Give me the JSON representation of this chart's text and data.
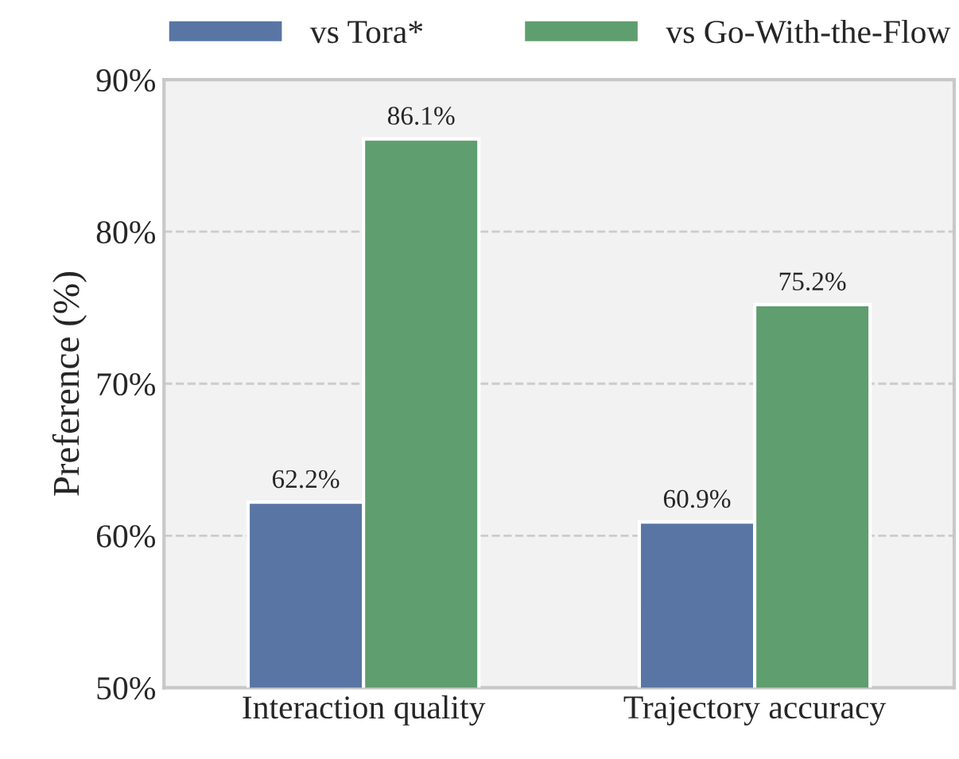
{
  "chart_data": {
    "type": "bar",
    "ylabel": "Preference (%)",
    "categories": [
      "Interaction quality",
      "Trajectory accuracy"
    ],
    "series": [
      {
        "name": "vs Tora*",
        "color": "#5875a4",
        "values": [
          62.2,
          60.9
        ],
        "value_labels": [
          "62.2%",
          "60.9%"
        ]
      },
      {
        "name": "vs Go-With-the-Flow",
        "color": "#5f9e6e",
        "values": [
          86.1,
          75.2
        ],
        "value_labels": [
          "86.1%",
          "75.2%"
        ]
      }
    ],
    "ylim": [
      50,
      90
    ],
    "yticks": [
      {
        "value": 50,
        "label": "50%"
      },
      {
        "value": 60,
        "label": "60%"
      },
      {
        "value": 70,
        "label": "70%"
      },
      {
        "value": 80,
        "label": "80%"
      },
      {
        "value": 90,
        "label": "90%"
      }
    ],
    "grid": "y",
    "legend": "top"
  }
}
